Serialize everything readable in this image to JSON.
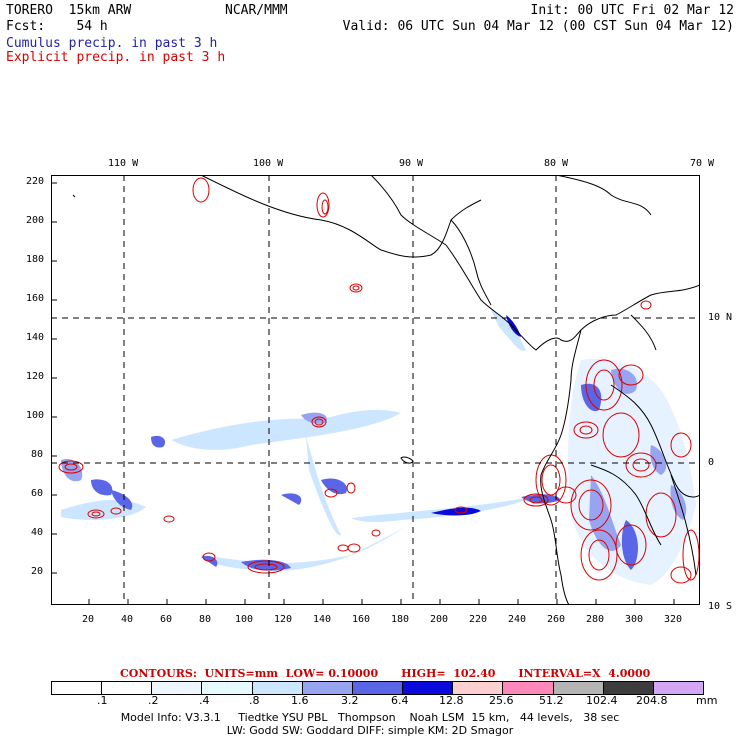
{
  "header": {
    "left_line1": "TORERO  15km ARW",
    "center_line1": "NCAR/MMM",
    "right_line1": "Init: 00 UTC Fri 02 Mar 12",
    "left_line2": "Fcst:    54 h",
    "right_line2": "Valid: 06 UTC Sun 04 Mar 12 (00 CST Sun 04 Mar 12)",
    "line3": "Cumulus precip. in past 3 h",
    "line4": "Explicit precip. in past 3 h",
    "line3_color": "#2222aa",
    "line4_color": "#dd0000"
  },
  "map": {
    "lon_labels": [
      "110 W",
      "100 W",
      "90 W",
      "80 W",
      "70 W"
    ],
    "lat_labels": [
      "10 N",
      "0",
      "10 S"
    ],
    "x_ticks": [
      "20",
      "40",
      "60",
      "80",
      "100",
      "120",
      "140",
      "160",
      "180",
      "200",
      "220",
      "240",
      "260",
      "280",
      "300",
      "320"
    ],
    "y_ticks": [
      "20",
      "40",
      "60",
      "80",
      "100",
      "120",
      "140",
      "160",
      "180",
      "200",
      "220"
    ]
  },
  "legend": {
    "contours_text": "CONTOURS:  UNITS=mm  LOW= 0.10000      HIGH=  102.40      INTERVAL=X  4.0000",
    "colors": [
      "#ffffff",
      "#ffffff",
      "#eef6ff",
      "#e6fbff",
      "#cce6ff",
      "#99a4f0",
      "#5a66e6",
      "#0a0adc",
      "#ffd0d0",
      "#ff88bb",
      "#b4b4b4",
      "#3c3c3c",
      "#d6a6f6"
    ],
    "labels": [
      ".1",
      ".2",
      ".4",
      ".8",
      "1.6",
      "3.2",
      "6.4",
      "12.8",
      "25.6",
      "51.2",
      "102.4",
      "204.8"
    ],
    "unit": "mm"
  },
  "footer": {
    "line1": "Model Info: V3.3.1     Tiedtke YSU PBL   Thompson    Noah LSM  15 km,   44 levels,   38 sec",
    "line2": "LW: Godd SW: Goddard DIFF: simple KM: 2D Smagor"
  }
}
